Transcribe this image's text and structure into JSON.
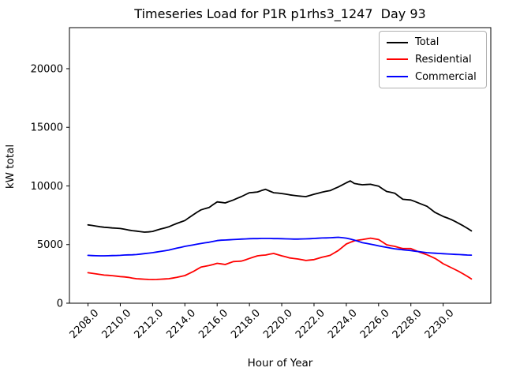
{
  "chart_data": {
    "type": "line",
    "title": "Timeseries Load for P1R p1rhs3_1247  Day 93",
    "xlabel": "Hour of Year",
    "ylabel": "kW total",
    "grid": false,
    "legend_position": "upper right",
    "xlim": [
      2206.85,
      2232.95
    ],
    "ylim": [
      0,
      23500
    ],
    "xticks": [
      2208,
      2210,
      2212,
      2214,
      2216,
      2218,
      2220,
      2222,
      2224,
      2226,
      2228,
      2230
    ],
    "xtick_labels": [
      "2208.0",
      "2210.0",
      "2212.0",
      "2214.0",
      "2216.0",
      "2218.0",
      "2220.0",
      "2222.0",
      "2224.0",
      "2226.0",
      "2228.0",
      "2230.0"
    ],
    "yticks": [
      0,
      5000,
      10000,
      15000,
      20000
    ],
    "ytick_labels": [
      "0",
      "5000",
      "10000",
      "15000",
      "20000"
    ],
    "x": [
      2208,
      2208.25,
      2208.5,
      2208.75,
      2209,
      2209.25,
      2209.5,
      2209.75,
      2210,
      2210.25,
      2210.5,
      2210.75,
      2211,
      2211.25,
      2211.5,
      2211.75,
      2212,
      2212.25,
      2212.5,
      2212.75,
      2213,
      2213.25,
      2213.5,
      2213.75,
      2214,
      2214.25,
      2214.5,
      2214.75,
      2215,
      2215.25,
      2215.5,
      2215.75,
      2216,
      2216.25,
      2216.5,
      2216.75,
      2217,
      2217.25,
      2217.5,
      2217.75,
      2218,
      2218.25,
      2218.5,
      2218.75,
      2219,
      2219.25,
      2219.5,
      2219.75,
      2220,
      2220.25,
      2220.5,
      2220.75,
      2221,
      2221.25,
      2221.5,
      2221.75,
      2222,
      2222.25,
      2222.5,
      2222.75,
      2223,
      2223.25,
      2223.5,
      2223.75,
      2224,
      2224.25,
      2224.5,
      2224.75,
      2225,
      2225.25,
      2225.5,
      2225.75,
      2226,
      2226.25,
      2226.5,
      2226.75,
      2227,
      2227.25,
      2227.5,
      2227.75,
      2228,
      2228.25,
      2228.5,
      2228.75,
      2229,
      2229.25,
      2229.5,
      2229.75,
      2230,
      2230.25,
      2230.5,
      2230.75,
      2231,
      2231.25,
      2231.5,
      2231.75
    ],
    "series": [
      {
        "name": "Total",
        "color": "#000000",
        "values": [
          6680,
          6630,
          6570,
          6520,
          6480,
          6450,
          6420,
          6400,
          6370,
          6310,
          6240,
          6190,
          6150,
          6100,
          6060,
          6080,
          6120,
          6230,
          6330,
          6420,
          6510,
          6660,
          6800,
          6930,
          7050,
          7290,
          7520,
          7750,
          7960,
          8070,
          8160,
          8410,
          8640,
          8600,
          8550,
          8680,
          8800,
          8950,
          9090,
          9260,
          9420,
          9450,
          9490,
          9610,
          9710,
          9560,
          9420,
          9390,
          9350,
          9300,
          9240,
          9190,
          9150,
          9120,
          9090,
          9190,
          9290,
          9380,
          9470,
          9540,
          9600,
          9760,
          9910,
          10090,
          10270,
          10430,
          10210,
          10150,
          10100,
          10120,
          10140,
          10060,
          9980,
          9750,
          9530,
          9460,
          9380,
          9120,
          8860,
          8830,
          8800,
          8670,
          8530,
          8400,
          8260,
          8000,
          7740,
          7570,
          7400,
          7270,
          7130,
          6960,
          6780,
          6590,
          6390,
          6170
        ]
      },
      {
        "name": "Residential",
        "color": "#ff0000",
        "values": [
          2600,
          2550,
          2500,
          2450,
          2400,
          2380,
          2350,
          2310,
          2270,
          2240,
          2200,
          2140,
          2090,
          2070,
          2050,
          2030,
          2020,
          2030,
          2050,
          2070,
          2090,
          2140,
          2200,
          2280,
          2360,
          2520,
          2690,
          2880,
          3080,
          3150,
          3210,
          3300,
          3400,
          3350,
          3300,
          3430,
          3550,
          3570,
          3590,
          3700,
          3820,
          3930,
          4040,
          4080,
          4110,
          4180,
          4240,
          4140,
          4040,
          3950,
          3860,
          3810,
          3770,
          3710,
          3640,
          3680,
          3720,
          3820,
          3920,
          4000,
          4080,
          4280,
          4490,
          4770,
          5050,
          5190,
          5320,
          5380,
          5430,
          5490,
          5550,
          5490,
          5430,
          5210,
          4980,
          4910,
          4850,
          4750,
          4660,
          4660,
          4660,
          4520,
          4370,
          4250,
          4130,
          3980,
          3820,
          3600,
          3370,
          3200,
          3030,
          2860,
          2690,
          2490,
          2290,
          2070
        ]
      },
      {
        "name": "Commercial",
        "color": "#0000ff",
        "values": [
          4080,
          4060,
          4050,
          4040,
          4040,
          4050,
          4060,
          4070,
          4080,
          4110,
          4120,
          4130,
          4150,
          4190,
          4230,
          4270,
          4310,
          4360,
          4420,
          4470,
          4530,
          4610,
          4690,
          4770,
          4850,
          4910,
          4970,
          5030,
          5090,
          5150,
          5200,
          5270,
          5340,
          5370,
          5390,
          5410,
          5430,
          5450,
          5470,
          5480,
          5500,
          5510,
          5510,
          5520,
          5520,
          5520,
          5510,
          5510,
          5500,
          5490,
          5480,
          5470,
          5470,
          5480,
          5490,
          5500,
          5520,
          5540,
          5560,
          5570,
          5580,
          5600,
          5620,
          5590,
          5550,
          5470,
          5380,
          5270,
          5160,
          5100,
          5030,
          4960,
          4890,
          4820,
          4760,
          4700,
          4640,
          4600,
          4560,
          4520,
          4490,
          4440,
          4400,
          4350,
          4310,
          4280,
          4260,
          4240,
          4220,
          4200,
          4180,
          4160,
          4150,
          4130,
          4110,
          4100
        ]
      }
    ]
  }
}
